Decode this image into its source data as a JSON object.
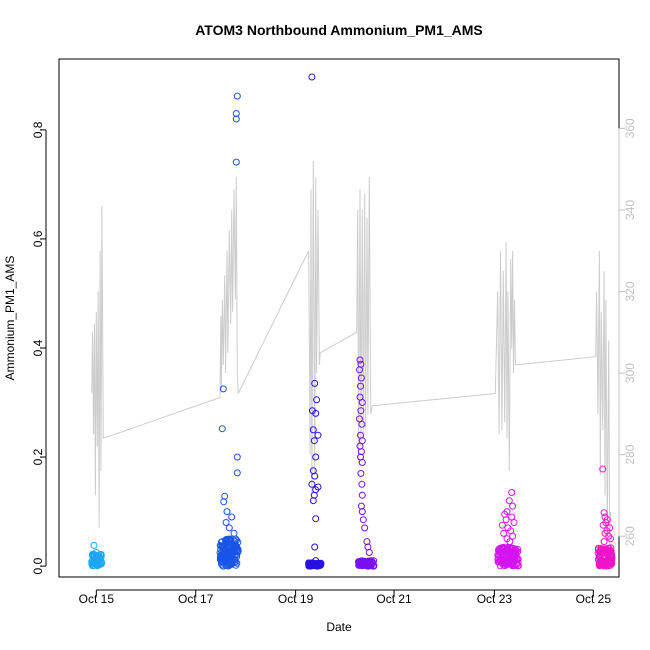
{
  "chart_data": {
    "type": "scatter",
    "title": "ATOM3 Northbound Ammonium_PM1_AMS",
    "xlabel": "Date",
    "ylabel": "Ammonium_PM1_AMS",
    "x_tick_labels": [
      "Oct 15",
      "Oct 17",
      "Oct 19",
      "Oct 21",
      "Oct 23",
      "Oct 25"
    ],
    "y_ticks": [
      0.0,
      0.2,
      0.4,
      0.6,
      0.8
    ],
    "y_tick_labels": [
      "0.0",
      "0.2",
      "0.4",
      "0.6",
      "0.8"
    ],
    "ylim": [
      -0.02,
      0.93
    ],
    "y2_ticks": [
      260,
      280,
      300,
      320,
      340,
      360
    ],
    "y2_tick_labels": [
      "260",
      "280",
      "300",
      "320",
      "340",
      "360"
    ],
    "y2lim": [
      250,
      377
    ],
    "grid": false,
    "scatter_series": [
      {
        "color": "#1ea7f0",
        "t_range": [
          14.7,
          14.92
        ],
        "points": [
          [
            14.75,
            0.038
          ],
          [
            14.8,
            0.025
          ],
          [
            14.85,
            0.02
          ],
          [
            14.9,
            0.015
          ],
          [
            14.78,
            0.012
          ]
        ],
        "base_band": [
          0.0,
          0.022
        ],
        "n_base": 60
      },
      {
        "color": "#1a55e8",
        "t_range": [
          17.45,
          17.85
        ],
        "points": [
          [
            17.52,
            0.325
          ],
          [
            17.5,
            0.252
          ],
          [
            17.82,
            0.862
          ],
          [
            17.8,
            0.83
          ],
          [
            17.8,
            0.82
          ],
          [
            17.8,
            0.741
          ],
          [
            17.82,
            0.2
          ],
          [
            17.82,
            0.171
          ],
          [
            17.55,
            0.128
          ],
          [
            17.53,
            0.118
          ],
          [
            17.6,
            0.1
          ],
          [
            17.7,
            0.09
          ],
          [
            17.58,
            0.08
          ],
          [
            17.65,
            0.07
          ],
          [
            17.75,
            0.06
          ]
        ],
        "base_band": [
          0.0,
          0.05
        ],
        "n_base": 140
      },
      {
        "color": "#2a10e0",
        "t_range": [
          19.35,
          19.62
        ],
        "points": [
          [
            19.42,
            0.897
          ],
          [
            19.48,
            0.335
          ],
          [
            19.52,
            0.305
          ],
          [
            19.43,
            0.285
          ],
          [
            19.5,
            0.28
          ],
          [
            19.45,
            0.25
          ],
          [
            19.55,
            0.24
          ],
          [
            19.47,
            0.23
          ],
          [
            19.5,
            0.2
          ],
          [
            19.45,
            0.175
          ],
          [
            19.48,
            0.165
          ],
          [
            19.42,
            0.15
          ],
          [
            19.55,
            0.145
          ],
          [
            19.5,
            0.14
          ],
          [
            19.47,
            0.13
          ],
          [
            19.45,
            0.12
          ],
          [
            19.5,
            0.087
          ],
          [
            19.48,
            0.035
          ],
          [
            19.5,
            0.01
          ]
        ],
        "base_band": [
          0.0,
          0.006
        ],
        "n_base": 50
      },
      {
        "color": "#7a10f0",
        "t_range": [
          20.4,
          20.75
        ],
        "points": [
          [
            20.45,
            0.378
          ],
          [
            20.47,
            0.37
          ],
          [
            20.44,
            0.36
          ],
          [
            20.48,
            0.345
          ],
          [
            20.46,
            0.33
          ],
          [
            20.45,
            0.31
          ],
          [
            20.5,
            0.3
          ],
          [
            20.47,
            0.285
          ],
          [
            20.44,
            0.27
          ],
          [
            20.49,
            0.26
          ],
          [
            20.46,
            0.24
          ],
          [
            20.5,
            0.23
          ],
          [
            20.45,
            0.22
          ],
          [
            20.48,
            0.21
          ],
          [
            20.46,
            0.2
          ],
          [
            20.5,
            0.19
          ],
          [
            20.47,
            0.17
          ],
          [
            20.49,
            0.15
          ],
          [
            20.5,
            0.13
          ],
          [
            20.48,
            0.11
          ],
          [
            20.5,
            0.1
          ],
          [
            20.52,
            0.085
          ],
          [
            20.55,
            0.07
          ],
          [
            20.6,
            0.045
          ],
          [
            20.62,
            0.035
          ],
          [
            20.65,
            0.025
          ]
        ],
        "base_band": [
          0.0,
          0.01
        ],
        "n_base": 70
      },
      {
        "color": "#d414f0",
        "t_range": [
          23.4,
          23.85
        ],
        "points": [
          [
            23.7,
            0.135
          ],
          [
            23.65,
            0.12
          ],
          [
            23.72,
            0.11
          ],
          [
            23.6,
            0.1
          ],
          [
            23.55,
            0.095
          ],
          [
            23.7,
            0.09
          ],
          [
            23.58,
            0.085
          ],
          [
            23.75,
            0.08
          ],
          [
            23.5,
            0.075
          ],
          [
            23.62,
            0.07
          ],
          [
            23.68,
            0.065
          ],
          [
            23.53,
            0.06
          ],
          [
            23.72,
            0.055
          ],
          [
            23.6,
            0.05
          ],
          [
            23.66,
            0.045
          ]
        ],
        "base_band": [
          0.0,
          0.035
        ],
        "n_base": 110
      },
      {
        "color": "#f014c8",
        "t_range": [
          25.55,
          25.85
        ],
        "points": [
          [
            25.65,
            0.178
          ],
          [
            25.68,
            0.098
          ],
          [
            25.7,
            0.09
          ],
          [
            25.75,
            0.085
          ],
          [
            25.72,
            0.08
          ],
          [
            25.66,
            0.075
          ],
          [
            25.8,
            0.07
          ],
          [
            25.74,
            0.065
          ],
          [
            25.7,
            0.06
          ],
          [
            25.78,
            0.055
          ],
          [
            25.82,
            0.05
          ],
          [
            25.68,
            0.045
          ]
        ],
        "base_band": [
          0.0,
          0.035
        ],
        "n_base": 90
      }
    ],
    "secondary_line": {
      "color": "#cccccc",
      "y_axis": "right",
      "points": [
        [
          14.7,
          295
        ],
        [
          14.72,
          310
        ],
        [
          14.74,
          285
        ],
        [
          14.76,
          312
        ],
        [
          14.78,
          270
        ],
        [
          14.8,
          315
        ],
        [
          14.82,
          282
        ],
        [
          14.84,
          320
        ],
        [
          14.86,
          262
        ],
        [
          14.88,
          330
        ],
        [
          14.9,
          276
        ],
        [
          14.92,
          341
        ],
        [
          14.95,
          284
        ],
        [
          17.45,
          294
        ],
        [
          17.47,
          314
        ],
        [
          17.48,
          296
        ],
        [
          17.5,
          318
        ],
        [
          17.52,
          302
        ],
        [
          17.55,
          324
        ],
        [
          17.57,
          300
        ],
        [
          17.6,
          330
        ],
        [
          17.62,
          305
        ],
        [
          17.65,
          335
        ],
        [
          17.68,
          312
        ],
        [
          17.7,
          340
        ],
        [
          17.72,
          315
        ],
        [
          17.75,
          345
        ],
        [
          17.78,
          318
        ],
        [
          17.8,
          348
        ],
        [
          17.82,
          300
        ],
        [
          17.84,
          295
        ],
        [
          19.35,
          330
        ],
        [
          19.38,
          280
        ],
        [
          19.4,
          345
        ],
        [
          19.42,
          270
        ],
        [
          19.45,
          352
        ],
        [
          19.48,
          275
        ],
        [
          19.5,
          348
        ],
        [
          19.52,
          300
        ],
        [
          19.55,
          340
        ],
        [
          19.58,
          302
        ],
        [
          19.6,
          305
        ],
        [
          20.38,
          310
        ],
        [
          20.4,
          340
        ],
        [
          20.42,
          278
        ],
        [
          20.45,
          345
        ],
        [
          20.47,
          282
        ],
        [
          20.5,
          340
        ],
        [
          20.52,
          284
        ],
        [
          20.55,
          344
        ],
        [
          20.57,
          286
        ],
        [
          20.6,
          338
        ],
        [
          20.62,
          290
        ],
        [
          20.65,
          348
        ],
        [
          20.68,
          290
        ],
        [
          20.72,
          292
        ],
        [
          23.35,
          295
        ],
        [
          23.4,
          320
        ],
        [
          23.43,
          285
        ],
        [
          23.46,
          330
        ],
        [
          23.49,
          286
        ],
        [
          23.52,
          325
        ],
        [
          23.55,
          288
        ],
        [
          23.58,
          332
        ],
        [
          23.6,
          284
        ],
        [
          23.62,
          320
        ],
        [
          23.65,
          276
        ],
        [
          23.68,
          328
        ],
        [
          23.7,
          306
        ],
        [
          23.72,
          330
        ],
        [
          23.74,
          300
        ],
        [
          23.76,
          318
        ],
        [
          23.78,
          302
        ],
        [
          23.8,
          302
        ],
        [
          25.5,
          304
        ],
        [
          25.52,
          320
        ],
        [
          25.55,
          290
        ],
        [
          25.58,
          330
        ],
        [
          25.6,
          275
        ],
        [
          25.62,
          315
        ],
        [
          25.65,
          286
        ],
        [
          25.68,
          325
        ],
        [
          25.7,
          270
        ],
        [
          25.72,
          318
        ],
        [
          25.75,
          260
        ],
        [
          25.78,
          308
        ],
        [
          25.8,
          258
        ],
        [
          25.82,
          266
        ]
      ]
    }
  }
}
